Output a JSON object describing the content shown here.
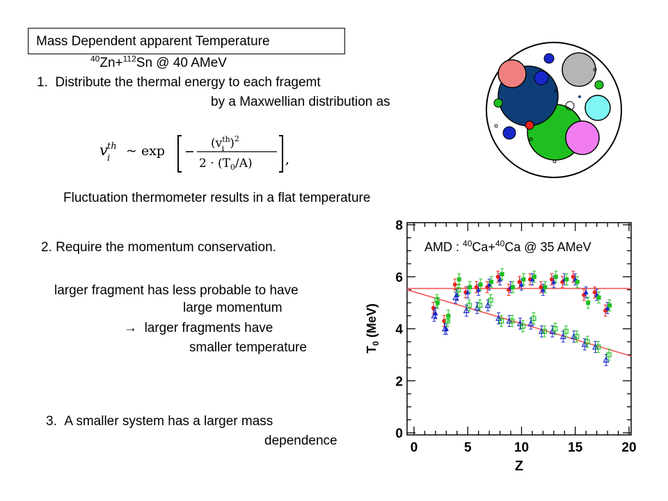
{
  "title": "Mass Dependent  apparent Temperature",
  "reaction": {
    "a_mass": "40",
    "a_el": "Zn+",
    "b_mass": "112",
    "b_el": "Sn @ 40 AMeV"
  },
  "item1": {
    "num": "1.",
    "line1": "Distribute the thermal energy  to each fragemt",
    "line2": "by a Maxwellian distribution as"
  },
  "equation": {
    "lhs": "v",
    "lhs_sup": "th",
    "lhs_sub": "i",
    "sim": "~ exp",
    "num": "(v",
    "num_sup": "th",
    "num_sub": "i",
    "num_end": ")",
    "num_pow": "2",
    "den": "2 · (T",
    "den_sub": "0",
    "den_end": "/A)",
    "tail": ","
  },
  "fluct_line": "Fluctuation thermometer results in a flat temperature",
  "item2": {
    "line1": "2. Require the momentum conservation.",
    "line2": "larger fragment has less probable to have",
    "line3": "large momentum",
    "arrow": "→",
    "line4": "larger fragments have",
    "line5": "smaller temperature"
  },
  "item3": {
    "num": "3.",
    "line1": "A smaller system has a larger mass",
    "line2": "dependence"
  },
  "plot_label": {
    "pre": "AMD : ",
    "a_mass": "40",
    "a_el": "Ca+",
    "b_mass": "40",
    "b_el": "Ca @ 35 AMeV"
  },
  "colors": {
    "red": "#e8221c",
    "blue": "#1726c9",
    "green": "#1fbf1f",
    "pink": "#f08080",
    "navy": "#0e3e78",
    "grey": "#b5b5b5",
    "cyan": "#7ff5f5",
    "magenta": "#f07cf0",
    "fit": "#f25555"
  },
  "chart_data": {
    "type": "scatter",
    "xlabel": "Z",
    "ylabel": "T0 (MeV)",
    "xlim": [
      0,
      20
    ],
    "ylim": [
      0,
      8
    ],
    "xticks": [
      "0",
      "5",
      "10",
      "15",
      "20"
    ],
    "yticks": [
      "0",
      "2",
      "4",
      "6",
      "8"
    ],
    "fit_lines": [
      {
        "x": [
          0,
          20
        ],
        "y": [
          5.55,
          5.55
        ]
      },
      {
        "x": [
          0,
          20
        ],
        "y": [
          5.5,
          2.95
        ]
      }
    ],
    "series": [
      {
        "marker": "circle",
        "color": "#e8221c",
        "x": [
          2,
          3,
          4,
          5,
          6,
          7,
          8,
          9,
          10,
          11,
          12,
          13,
          14,
          15,
          16,
          17,
          18
        ],
        "y": [
          4.8,
          4.3,
          5.7,
          5.4,
          5.6,
          5.6,
          6.0,
          5.5,
          5.8,
          5.9,
          5.6,
          5.9,
          5.8,
          6.0,
          5.3,
          5.4,
          4.7
        ]
      },
      {
        "marker": "triangle",
        "color": "#1726c9",
        "x": [
          2,
          3,
          4,
          5,
          6,
          7,
          8,
          9,
          10,
          11,
          12,
          13,
          14,
          15,
          16,
          17,
          18
        ],
        "y": [
          4.6,
          4.0,
          5.3,
          5.4,
          5.5,
          5.7,
          5.9,
          5.6,
          5.7,
          5.9,
          5.5,
          5.8,
          5.9,
          5.9,
          5.4,
          5.3,
          4.8
        ]
      },
      {
        "marker": "square",
        "color": "#1fbf1f",
        "x": [
          2,
          3,
          4,
          5,
          6,
          7,
          8,
          9,
          10,
          11,
          12,
          13,
          14,
          15,
          16,
          17,
          18
        ],
        "y": [
          5.0,
          4.5,
          5.9,
          5.6,
          5.7,
          5.8,
          6.1,
          5.6,
          5.9,
          6.0,
          5.6,
          6.0,
          5.9,
          5.8,
          5.0,
          5.2,
          4.9
        ]
      },
      {
        "marker": "open-triangle",
        "color": "#1726c9",
        "x": [
          2,
          3,
          4,
          5,
          6,
          7,
          8,
          9,
          10,
          11,
          12,
          13,
          14,
          15,
          16,
          17,
          18
        ],
        "y": [
          4.5,
          4.0,
          5.2,
          4.7,
          4.8,
          4.9,
          4.4,
          4.3,
          4.2,
          4.2,
          3.9,
          3.9,
          3.7,
          3.7,
          3.4,
          3.3,
          2.8
        ]
      },
      {
        "marker": "open-square",
        "color": "#1fbf1f",
        "x": [
          2,
          3,
          4,
          5,
          6,
          7,
          8,
          9,
          10,
          11,
          12,
          13,
          14,
          15,
          16,
          17,
          18
        ],
        "y": [
          5.1,
          4.3,
          5.5,
          4.9,
          4.9,
          5.1,
          4.3,
          4.3,
          4.1,
          4.4,
          3.9,
          4.0,
          3.9,
          3.7,
          3.5,
          3.3,
          3.0
        ]
      }
    ]
  }
}
